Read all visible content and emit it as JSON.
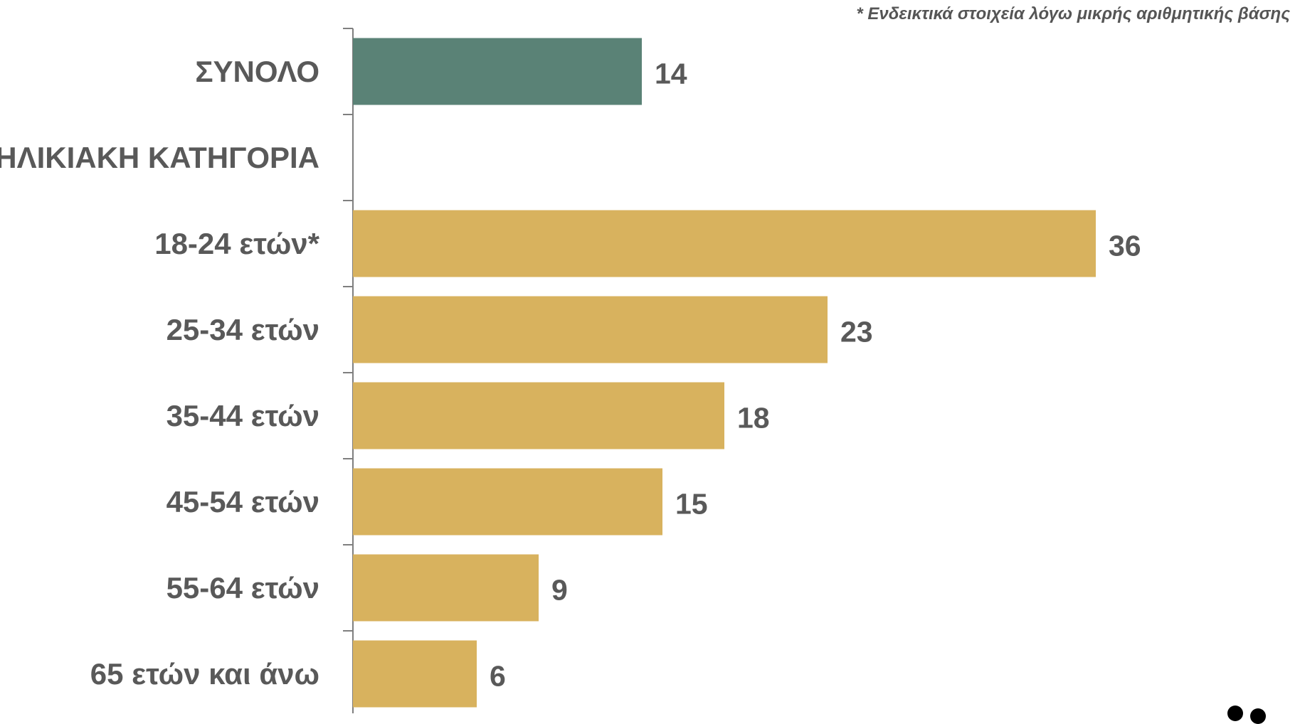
{
  "footnote": "* Ενδεικτικά στοιχεία λόγω μικρής αριθμητικής βάσης",
  "colors": {
    "total": "#5a8276",
    "bars": "#d8b25e",
    "axis": "#7f7f7f",
    "text": "#595959"
  },
  "chart_data": {
    "type": "bar",
    "orientation": "horizontal",
    "categories": [
      "ΣΥΝΟΛΟ",
      "ΗΛΙΚΙΑΚΗ ΚΑΤΗΓΟΡΙΑ",
      "18-24 ετών*",
      "25-34 ετών",
      "35-44 ετών",
      "45-54 ετών",
      "55-64 ετών",
      "65 ετών και άνω"
    ],
    "values": [
      14,
      null,
      36,
      23,
      18,
      15,
      9,
      6
    ],
    "value_labels": [
      "14",
      "",
      "36",
      "23",
      "18",
      "15",
      "9",
      "6"
    ],
    "bar_color_keys": [
      "total",
      null,
      "bars",
      "bars",
      "bars",
      "bars",
      "bars",
      "bars"
    ],
    "xlim": [
      0,
      42
    ],
    "grid": false,
    "legend": "none"
  }
}
